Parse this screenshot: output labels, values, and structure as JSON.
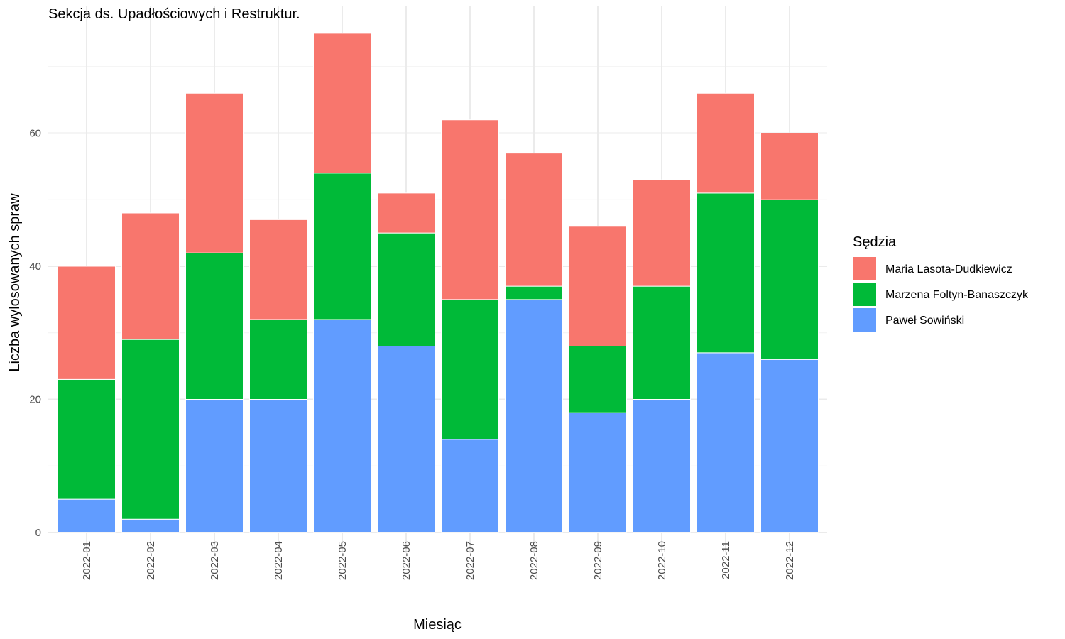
{
  "chart_data": {
    "type": "bar",
    "stacked": true,
    "title": "Sekcja ds. Upadłościowych i Restruktur.",
    "xlabel": "Miesiąc",
    "ylabel": "Liczba wylosowanych spraw",
    "ylim": [
      0,
      75
    ],
    "yticks": [
      0,
      20,
      40,
      60
    ],
    "grid": true,
    "legend_title": "Sędzia",
    "legend_position": "right",
    "categories": [
      "2022-01",
      "2022-02",
      "2022-03",
      "2022-04",
      "2022-05",
      "2022-06",
      "2022-07",
      "2022-08",
      "2022-09",
      "2022-10",
      "2022-11",
      "2022-12"
    ],
    "series": [
      {
        "name": "Paweł Sowiński",
        "color": "#619CFF",
        "values": [
          5,
          2,
          20,
          20,
          32,
          28,
          14,
          35,
          18,
          20,
          27,
          26
        ]
      },
      {
        "name": "Marzena Foltyn-Banaszczyk",
        "color": "#00BA38",
        "values": [
          18,
          27,
          22,
          12,
          22,
          17,
          21,
          2,
          10,
          17,
          24,
          24
        ]
      },
      {
        "name": "Maria Lasota-Dudkiewicz",
        "color": "#F8766D",
        "values": [
          17,
          19,
          24,
          15,
          21,
          6,
          27,
          20,
          18,
          16,
          15,
          10
        ]
      }
    ],
    "legend_order": [
      "Maria Lasota-Dudkiewicz",
      "Marzena Foltyn-Banaszczyk",
      "Paweł Sowiński"
    ]
  }
}
